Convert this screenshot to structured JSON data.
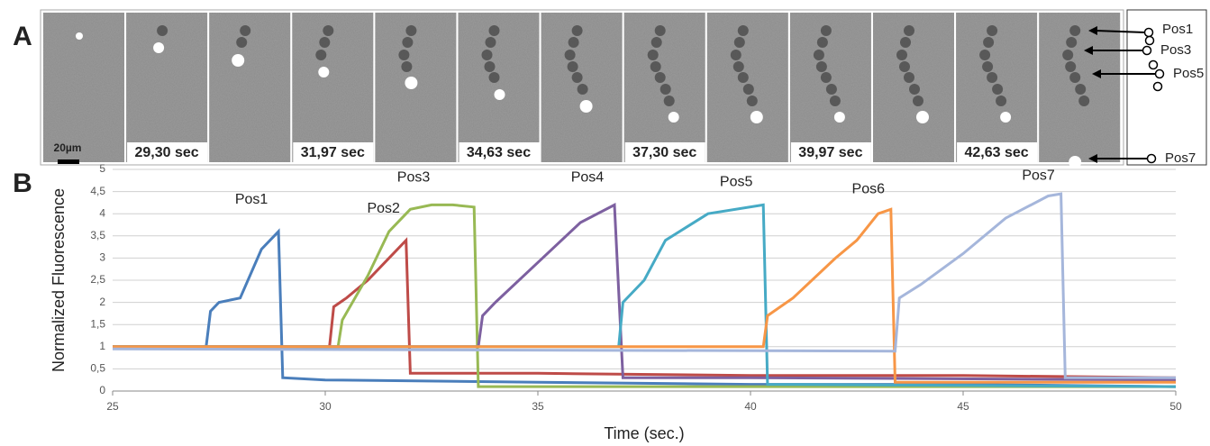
{
  "panel_a": {
    "label": "A",
    "scale_bar": "20µm",
    "timestamps": [
      "29,30 sec",
      "31,97 sec",
      "34,63 sec",
      "37,30 sec",
      "39,97 sec",
      "42,63 sec"
    ],
    "positions": [
      "Pos1",
      "Pos3",
      "Pos5",
      "Pos7"
    ]
  },
  "panel_b": {
    "label": "B"
  },
  "chart_data": {
    "type": "line",
    "x_label": "Time (sec.)",
    "y_label": "Normalized Fluorescence",
    "xlim": [
      25,
      50
    ],
    "xticks": [
      25,
      30,
      35,
      40,
      45,
      50
    ],
    "ylim": [
      0,
      5
    ],
    "yticks": [
      0,
      {
        "value": 0.5,
        "label": "0,5"
      },
      1,
      {
        "value": 1.5,
        "label": "1,5"
      },
      2,
      {
        "value": 2.5,
        "label": "2,5"
      },
      3,
      {
        "value": 3.5,
        "label": "3,5"
      },
      4,
      {
        "value": 4.5,
        "label": "4,5"
      },
      5
    ],
    "grid": true,
    "series": [
      {
        "name": "Pos1",
        "color": "#4a7ebb",
        "x": [
          25,
          27.2,
          27.3,
          27.5,
          28,
          28.5,
          28.9,
          29.0,
          30,
          35,
          40,
          45,
          50
        ],
        "values": [
          1,
          1,
          1.8,
          2,
          2.1,
          3.2,
          3.6,
          0.3,
          0.25,
          0.2,
          0.15,
          0.15,
          0.1
        ]
      },
      {
        "name": "Pos2",
        "color": "#be4b48",
        "x": [
          25,
          30.1,
          30.2,
          30.5,
          31,
          31.5,
          31.9,
          32,
          35,
          40,
          45,
          50
        ],
        "values": [
          1,
          1,
          1.9,
          2.1,
          2.5,
          3,
          3.4,
          0.4,
          0.4,
          0.35,
          0.35,
          0.3
        ]
      },
      {
        "name": "Pos3",
        "color": "#98b954",
        "x": [
          25,
          30.3,
          30.4,
          31,
          31.5,
          32,
          32.5,
          33,
          33.5,
          33.6,
          40,
          50
        ],
        "values": [
          1,
          1,
          1.6,
          2.6,
          3.6,
          4.1,
          4.2,
          4.2,
          4.15,
          0.1,
          0.1,
          0.1
        ]
      },
      {
        "name": "Pos4",
        "color": "#7d60a0",
        "x": [
          25,
          33.6,
          33.7,
          34,
          35,
          36,
          36.8,
          37,
          40,
          50
        ],
        "values": [
          1,
          1,
          1.7,
          2,
          2.9,
          3.8,
          4.2,
          0.3,
          0.3,
          0.25
        ]
      },
      {
        "name": "Pos5",
        "color": "#46aac5",
        "x": [
          25,
          36.9,
          37,
          37.5,
          38,
          39,
          40.3,
          40.4,
          50
        ],
        "values": [
          1,
          1,
          2,
          2.5,
          3.4,
          4,
          4.2,
          0.15,
          0.1
        ]
      },
      {
        "name": "Pos6",
        "color": "#f79646",
        "x": [
          25,
          40.3,
          40.4,
          41,
          42,
          42.5,
          43,
          43.3,
          43.4,
          50
        ],
        "values": [
          1,
          1,
          1.7,
          2.1,
          3.0,
          3.4,
          4.0,
          4.1,
          0.2,
          0.2
        ]
      },
      {
        "name": "Pos7",
        "color": "#a5b6db",
        "x": [
          25,
          43.4,
          43.5,
          44,
          45,
          46,
          47,
          47.3,
          47.4,
          50
        ],
        "values": [
          0.95,
          0.9,
          2.1,
          2.4,
          3.1,
          3.9,
          4.4,
          4.45,
          0.3,
          0.3
        ]
      }
    ]
  }
}
